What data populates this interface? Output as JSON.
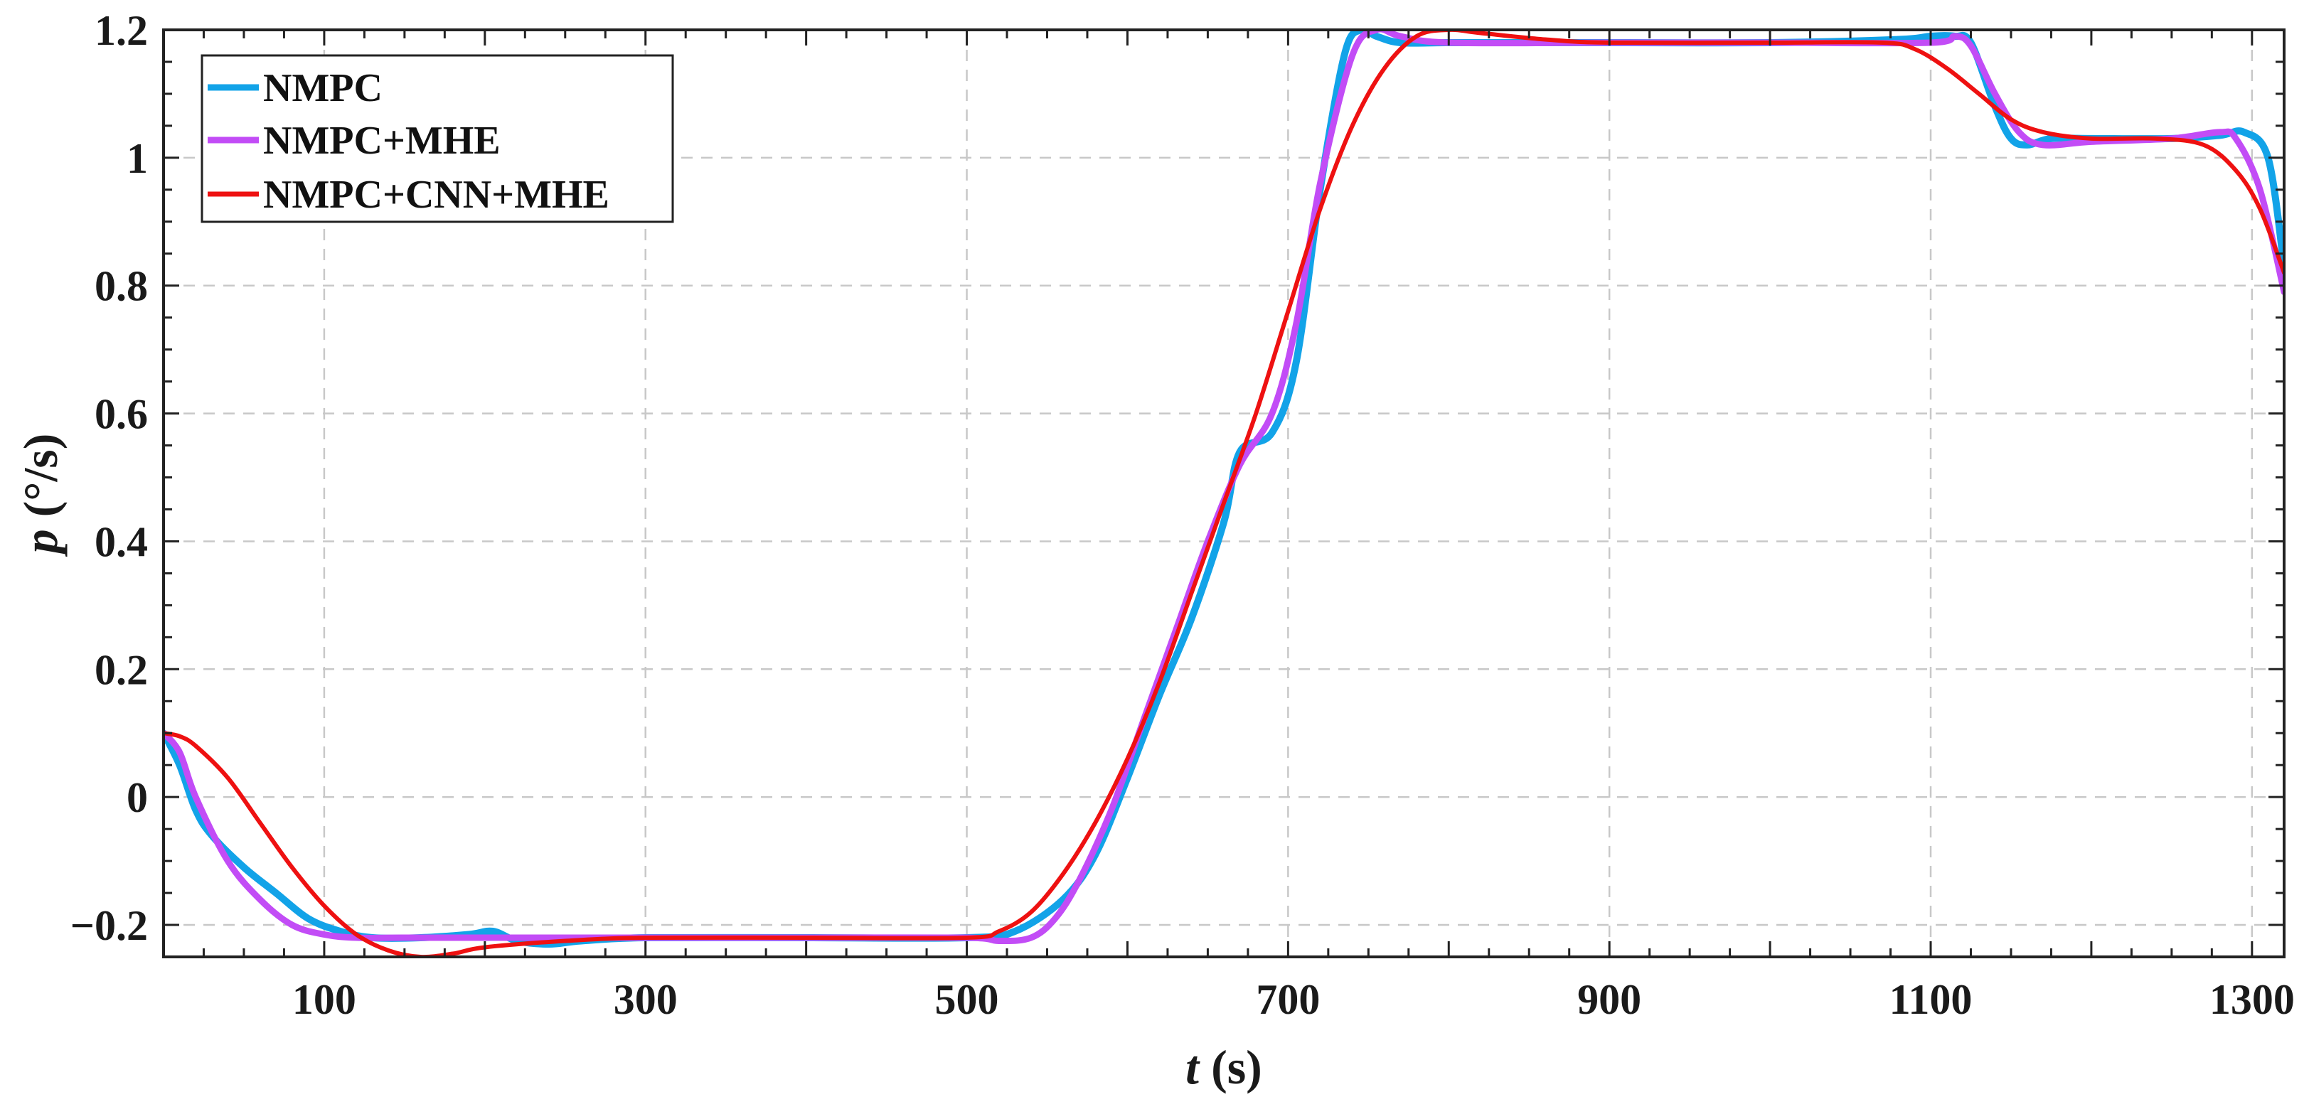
{
  "chart_data": {
    "type": "line",
    "xlabel_var": "t",
    "xlabel_unit": " (s)",
    "ylabel_var": "p",
    "ylabel_unit": " (°/s)",
    "xlim": [
      0,
      1320
    ],
    "ylim": [
      -0.25,
      1.2
    ],
    "xticks": [
      100,
      300,
      500,
      700,
      900,
      1100,
      1300
    ],
    "xtick_labels": [
      "100",
      "300",
      "500",
      "700",
      "900",
      "1100",
      "1300"
    ],
    "yticks": [
      -0.2,
      0,
      0.2,
      0.4,
      0.6,
      0.8,
      1,
      1.2
    ],
    "ytick_labels": [
      "−0.2",
      "0",
      "0.2",
      "0.4",
      "0.6",
      "0.8",
      "1",
      "1.2"
    ],
    "grid": true,
    "legend_position": "top-left",
    "series": [
      {
        "name": "NMPC",
        "color": "#12A3E8",
        "x": [
          0,
          10,
          20,
          30,
          50,
          70,
          90,
          110,
          130,
          160,
          190,
          205,
          220,
          240,
          260,
          300,
          400,
          500,
          530,
          560,
          580,
          600,
          620,
          640,
          660,
          670,
          690,
          705,
          720,
          735,
          745,
          755,
          770,
          800,
          850,
          900,
          1000,
          1080,
          1100,
          1115,
          1125,
          1140,
          1150,
          1160,
          1175,
          1200,
          1250,
          1280,
          1295,
          1310,
          1320
        ],
        "y": [
          0.1,
          0.05,
          -0.02,
          -0.06,
          -0.11,
          -0.15,
          -0.19,
          -0.21,
          -0.22,
          -0.22,
          -0.215,
          -0.21,
          -0.225,
          -0.23,
          -0.225,
          -0.22,
          -0.22,
          -0.22,
          -0.21,
          -0.16,
          -0.09,
          0.03,
          0.16,
          0.28,
          0.43,
          0.54,
          0.57,
          0.68,
          0.95,
          1.16,
          1.2,
          1.19,
          1.18,
          1.18,
          1.18,
          1.18,
          1.18,
          1.185,
          1.19,
          1.19,
          1.18,
          1.08,
          1.03,
          1.02,
          1.03,
          1.03,
          1.03,
          1.035,
          1.04,
          1.0,
          0.83
        ]
      },
      {
        "name": "NMPC+MHE",
        "color": "#C24CF6",
        "x": [
          0,
          10,
          20,
          40,
          60,
          80,
          100,
          120,
          150,
          200,
          300,
          400,
          500,
          520,
          540,
          555,
          570,
          590,
          610,
          630,
          650,
          670,
          690,
          705,
          720,
          740,
          755,
          770,
          800,
          900,
          1000,
          1100,
          1115,
          1125,
          1140,
          1155,
          1170,
          1200,
          1250,
          1280,
          1290,
          1305,
          1320
        ],
        "y": [
          0.1,
          0.07,
          0.0,
          -0.1,
          -0.16,
          -0.2,
          -0.215,
          -0.22,
          -0.22,
          -0.22,
          -0.22,
          -0.22,
          -0.22,
          -0.225,
          -0.22,
          -0.19,
          -0.13,
          -0.02,
          0.12,
          0.26,
          0.4,
          0.52,
          0.6,
          0.74,
          0.96,
          1.16,
          1.2,
          1.19,
          1.18,
          1.18,
          1.18,
          1.18,
          1.19,
          1.175,
          1.1,
          1.04,
          1.02,
          1.025,
          1.03,
          1.04,
          1.03,
          0.95,
          0.79
        ]
      },
      {
        "name": "NMPC+CNN+MHE",
        "color": "#EE1111",
        "x": [
          0,
          10,
          20,
          40,
          60,
          80,
          100,
          120,
          140,
          160,
          180,
          200,
          250,
          300,
          400,
          500,
          520,
          540,
          560,
          580,
          600,
          620,
          640,
          660,
          680,
          700,
          720,
          740,
          760,
          780,
          800,
          820,
          860,
          900,
          1000,
          1070,
          1090,
          1110,
          1130,
          1150,
          1170,
          1200,
          1240,
          1270,
          1290,
          1305,
          1320
        ],
        "y": [
          0.1,
          0.095,
          0.08,
          0.03,
          -0.04,
          -0.11,
          -0.17,
          -0.215,
          -0.24,
          -0.25,
          -0.245,
          -0.235,
          -0.225,
          -0.22,
          -0.22,
          -0.22,
          -0.21,
          -0.18,
          -0.12,
          -0.04,
          0.06,
          0.18,
          0.32,
          0.46,
          0.6,
          0.76,
          0.92,
          1.05,
          1.14,
          1.19,
          1.2,
          1.195,
          1.185,
          1.18,
          1.18,
          1.18,
          1.17,
          1.14,
          1.1,
          1.06,
          1.04,
          1.03,
          1.03,
          1.02,
          0.98,
          0.92,
          0.82
        ]
      }
    ]
  }
}
